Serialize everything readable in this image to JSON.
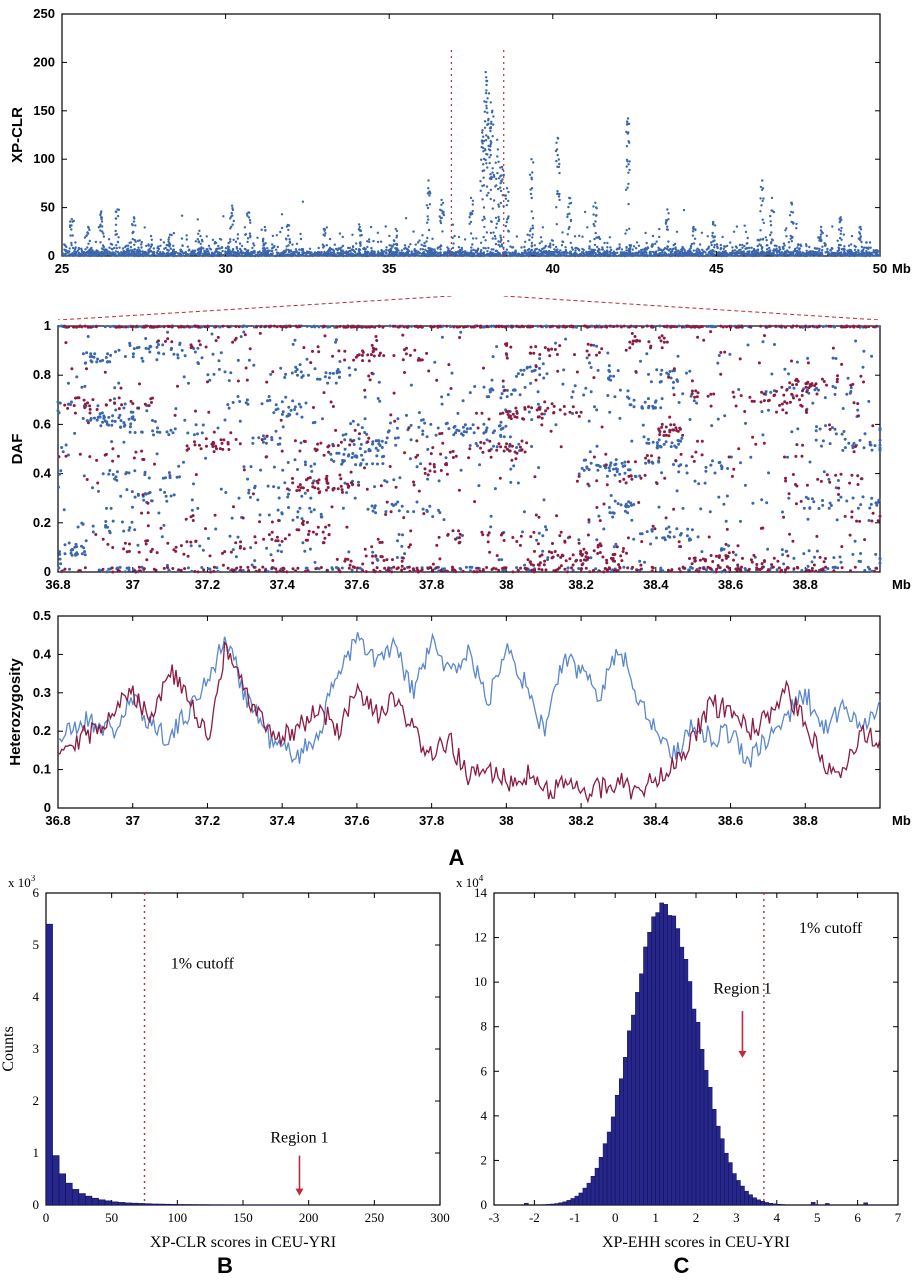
{
  "figure": {
    "panel_a_label": "A",
    "panel_b_label": "B",
    "panel_c_label": "C"
  },
  "colors": {
    "scatter_blue": "#3a66ad",
    "dark_red": "#8b1c40",
    "line_blue": "#5b87cc",
    "hist_fill": "#26268c",
    "hist_edge": "#11114d",
    "cutoff_red": "#c02a3c",
    "axis": "#000000"
  },
  "chart_data": [
    {
      "id": "xpclr",
      "type": "scatter",
      "title": "",
      "xlabel": "Mb",
      "ylabel": "XP-CLR",
      "xlim": [
        25,
        50
      ],
      "ylim": [
        0,
        250
      ],
      "xticks": [
        25,
        30,
        35,
        40,
        45,
        50
      ],
      "xtick_labels": [
        "25",
        "30",
        "35",
        "40",
        "45",
        "50"
      ],
      "yticks": [
        0,
        50,
        100,
        150,
        200,
        250
      ],
      "ytick_labels": [
        "0",
        "50",
        "100",
        "150",
        "200",
        "250"
      ],
      "region_lines": [
        36.9,
        38.5
      ],
      "series": [
        {
          "name": "xpclr-scores",
          "color": "scatter_blue"
        }
      ],
      "peaks": [
        [
          25.3,
          38
        ],
        [
          25.8,
          30
        ],
        [
          26.2,
          46
        ],
        [
          26.7,
          48
        ],
        [
          27.2,
          40
        ],
        [
          28.3,
          22
        ],
        [
          29.2,
          26
        ],
        [
          30.2,
          52
        ],
        [
          30.7,
          45
        ],
        [
          31.2,
          30
        ],
        [
          31.9,
          32
        ],
        [
          33.0,
          28
        ],
        [
          34.1,
          30
        ],
        [
          35.2,
          28
        ],
        [
          36.2,
          78
        ],
        [
          36.6,
          58
        ],
        [
          37.5,
          60
        ],
        [
          37.85,
          130
        ],
        [
          37.95,
          190
        ],
        [
          38.05,
          168
        ],
        [
          38.15,
          150
        ],
        [
          38.3,
          120
        ],
        [
          38.45,
          92
        ],
        [
          38.6,
          70
        ],
        [
          39.35,
          100
        ],
        [
          40.15,
          122
        ],
        [
          40.5,
          60
        ],
        [
          41.3,
          55
        ],
        [
          42.3,
          142
        ],
        [
          43.5,
          48
        ],
        [
          44.3,
          30
        ],
        [
          44.9,
          35
        ],
        [
          46.4,
          78
        ],
        [
          46.7,
          60
        ],
        [
          47.3,
          55
        ],
        [
          48.2,
          30
        ],
        [
          48.8,
          40
        ],
        [
          49.4,
          30
        ]
      ]
    },
    {
      "id": "daf",
      "type": "scatter",
      "title": "",
      "xlabel": "Mb",
      "ylabel": "DAF",
      "xlim": [
        36.8,
        39.0
      ],
      "ylim": [
        0,
        1
      ],
      "xticks": [
        36.8,
        37,
        37.2,
        37.4,
        37.6,
        37.8,
        38,
        38.2,
        38.4,
        38.6,
        38.8
      ],
      "xtick_labels": [
        "36.8",
        "37",
        "37.2",
        "37.4",
        "37.6",
        "37.8",
        "38",
        "38.2",
        "38.4",
        "38.6",
        "38.8"
      ],
      "yticks": [
        0,
        0.2,
        0.4,
        0.6,
        0.8,
        1
      ],
      "ytick_labels": [
        "0",
        "0.2",
        "0.4",
        "0.6",
        "0.8",
        "1"
      ],
      "series": [
        {
          "name": "blue",
          "color": "scatter_blue"
        },
        {
          "name": "dark-red",
          "color": "dark_red"
        }
      ]
    },
    {
      "id": "het",
      "type": "line",
      "title": "",
      "xlabel": "Mb",
      "ylabel": "Heterozygosity",
      "xlim": [
        36.8,
        39.0
      ],
      "ylim": [
        0,
        0.5
      ],
      "xticks": [
        36.8,
        37,
        37.2,
        37.4,
        37.6,
        37.8,
        38,
        38.2,
        38.4,
        38.6,
        38.8
      ],
      "xtick_labels": [
        "36.8",
        "37",
        "37.2",
        "37.4",
        "37.6",
        "37.8",
        "38",
        "38.2",
        "38.4",
        "38.6",
        "38.8"
      ],
      "yticks": [
        0,
        0.1,
        0.2,
        0.3,
        0.4,
        0.5
      ],
      "ytick_labels": [
        "0",
        "0.1",
        "0.2",
        "0.3",
        "0.4",
        "0.5"
      ],
      "series": [
        {
          "name": "blue",
          "color": "line_blue",
          "trend": [
            [
              36.8,
              0.18
            ],
            [
              36.88,
              0.23
            ],
            [
              36.95,
              0.2
            ],
            [
              37.0,
              0.28
            ],
            [
              37.05,
              0.22
            ],
            [
              37.1,
              0.18
            ],
            [
              37.18,
              0.3
            ],
            [
              37.25,
              0.44
            ],
            [
              37.3,
              0.3
            ],
            [
              37.38,
              0.16
            ],
            [
              37.45,
              0.14
            ],
            [
              37.5,
              0.2
            ],
            [
              37.55,
              0.36
            ],
            [
              37.6,
              0.44
            ],
            [
              37.65,
              0.38
            ],
            [
              37.7,
              0.42
            ],
            [
              37.75,
              0.3
            ],
            [
              37.8,
              0.43
            ],
            [
              37.85,
              0.35
            ],
            [
              37.9,
              0.41
            ],
            [
              37.95,
              0.27
            ],
            [
              38.0,
              0.44
            ],
            [
              38.05,
              0.32
            ],
            [
              38.1,
              0.2
            ],
            [
              38.15,
              0.38
            ],
            [
              38.2,
              0.36
            ],
            [
              38.25,
              0.3
            ],
            [
              38.3,
              0.42
            ],
            [
              38.35,
              0.3
            ],
            [
              38.4,
              0.2
            ],
            [
              38.45,
              0.14
            ],
            [
              38.5,
              0.22
            ],
            [
              38.55,
              0.18
            ],
            [
              38.6,
              0.2
            ],
            [
              38.65,
              0.12
            ],
            [
              38.7,
              0.18
            ],
            [
              38.75,
              0.24
            ],
            [
              38.8,
              0.3
            ],
            [
              38.85,
              0.2
            ],
            [
              38.9,
              0.26
            ],
            [
              38.95,
              0.22
            ],
            [
              39.0,
              0.27
            ]
          ]
        },
        {
          "name": "dark-red",
          "color": "dark_red",
          "trend": [
            [
              36.8,
              0.16
            ],
            [
              36.9,
              0.2
            ],
            [
              36.95,
              0.26
            ],
            [
              37.0,
              0.3
            ],
            [
              37.05,
              0.24
            ],
            [
              37.1,
              0.36
            ],
            [
              37.15,
              0.28
            ],
            [
              37.2,
              0.18
            ],
            [
              37.25,
              0.42
            ],
            [
              37.3,
              0.3
            ],
            [
              37.35,
              0.22
            ],
            [
              37.4,
              0.18
            ],
            [
              37.45,
              0.22
            ],
            [
              37.5,
              0.26
            ],
            [
              37.55,
              0.2
            ],
            [
              37.6,
              0.3
            ],
            [
              37.65,
              0.24
            ],
            [
              37.7,
              0.28
            ],
            [
              37.75,
              0.2
            ],
            [
              37.8,
              0.14
            ],
            [
              37.85,
              0.17
            ],
            [
              37.9,
              0.08
            ],
            [
              37.95,
              0.1
            ],
            [
              38.0,
              0.07
            ],
            [
              38.05,
              0.09
            ],
            [
              38.1,
              0.05
            ],
            [
              38.15,
              0.06
            ],
            [
              38.2,
              0.04
            ],
            [
              38.25,
              0.05
            ],
            [
              38.3,
              0.07
            ],
            [
              38.35,
              0.04
            ],
            [
              38.4,
              0.08
            ],
            [
              38.45,
              0.12
            ],
            [
              38.5,
              0.18
            ],
            [
              38.55,
              0.27
            ],
            [
              38.6,
              0.25
            ],
            [
              38.65,
              0.2
            ],
            [
              38.7,
              0.23
            ],
            [
              38.75,
              0.3
            ],
            [
              38.8,
              0.22
            ],
            [
              38.85,
              0.12
            ],
            [
              38.9,
              0.1
            ],
            [
              38.95,
              0.2
            ],
            [
              39.0,
              0.16
            ]
          ]
        }
      ]
    },
    {
      "id": "xpclr_hist",
      "type": "bar",
      "title": "",
      "xlabel": "XP-CLR scores in CEU-YRI",
      "ylabel": "Counts",
      "y_exponent_prefix": "x 10",
      "y_exponent": "3",
      "xlim": [
        0,
        300
      ],
      "ylim": [
        0,
        6
      ],
      "xticks": [
        0,
        50,
        100,
        150,
        200,
        250,
        300
      ],
      "xtick_labels": [
        "0",
        "50",
        "100",
        "150",
        "200",
        "250",
        "300"
      ],
      "yticks": [
        0,
        1,
        2,
        3,
        4,
        5,
        6
      ],
      "ytick_labels": [
        "0",
        "1",
        "2",
        "3",
        "4",
        "5",
        "6"
      ],
      "bin_start": 0,
      "bin_width": 5,
      "values": [
        5.4,
        0.95,
        0.6,
        0.42,
        0.3,
        0.22,
        0.17,
        0.13,
        0.1,
        0.08,
        0.06,
        0.05,
        0.04,
        0.035,
        0.03,
        0.025,
        0.02,
        0.018,
        0.015,
        0.012,
        0.01,
        0.009,
        0.008,
        0.007,
        0.006,
        0.005,
        0.005,
        0.004,
        0.004,
        0.003,
        0.003,
        0.002,
        0.002,
        0.002,
        0.001,
        0.001,
        0.001,
        0.001,
        0.001,
        0.001
      ],
      "cutoff": {
        "x": 75,
        "label": "1% cutoff",
        "label_x": 95,
        "label_y": 4.55
      },
      "region": {
        "label": "Region 1",
        "x": 193,
        "label_y": 1.2,
        "arrow_from": 0.95,
        "arrow_to": 0.18
      }
    },
    {
      "id": "xpehh_hist",
      "type": "bar",
      "title": "",
      "xlabel": "XP-EHH scores in CEU-YRI",
      "ylabel": "",
      "y_exponent_prefix": "x 10",
      "y_exponent": "4",
      "xlim": [
        -3,
        7
      ],
      "ylim": [
        0,
        14
      ],
      "xticks": [
        -3,
        -2,
        -1,
        0,
        1,
        2,
        3,
        4,
        5,
        6,
        7
      ],
      "xtick_labels": [
        "-3",
        "-2",
        "-1",
        "0",
        "1",
        "2",
        "3",
        "4",
        "5",
        "6",
        "7"
      ],
      "yticks": [
        0,
        2,
        4,
        6,
        8,
        10,
        12,
        14
      ],
      "ytick_labels": [
        "0",
        "2",
        "4",
        "6",
        "8",
        "10",
        "12",
        "14"
      ],
      "bin_start": -3,
      "bin_width": 0.1,
      "gaussian": {
        "mean": 1.22,
        "sd": 0.82,
        "peak": 13.4
      },
      "extras": [
        [
          -2.25,
          0.08
        ],
        [
          4.85,
          0.12
        ],
        [
          5.2,
          0.07
        ],
        [
          6.15,
          0.1
        ]
      ],
      "cutoff": {
        "x": 3.68,
        "label": "1% cutoff",
        "label_x": 4.55,
        "label_y": 12.2
      },
      "region": {
        "label": "Region 1",
        "x": 3.15,
        "label_y": 9.5,
        "arrow_from": 8.7,
        "arrow_to": 6.6
      }
    }
  ]
}
